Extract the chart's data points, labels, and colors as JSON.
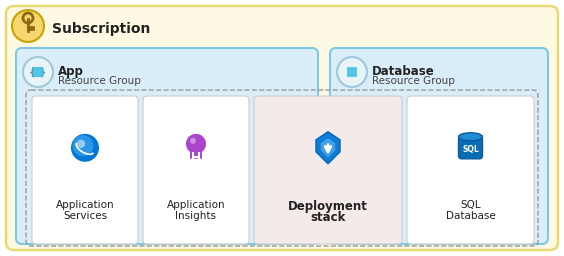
{
  "subscription_label": "Subscription",
  "app_label1": "App",
  "app_label2": "Resource Group",
  "db_label1": "Database",
  "db_label2": "Resource Group",
  "items": [
    {
      "label1": "Application",
      "label2": "Services",
      "icon": "app_services",
      "bold": false
    },
    {
      "label1": "Application",
      "label2": "Insights",
      "icon": "app_insights",
      "bold": false
    },
    {
      "label1": "Deployment",
      "label2": "stack",
      "icon": "deployment_stack",
      "bold": true
    },
    {
      "label1": "SQL",
      "label2": "Database",
      "icon": "sql_db",
      "bold": false
    }
  ],
  "bg_subscription": "#fef9e3",
  "bg_subscription_border": "#e8d870",
  "bg_app_rg": "#daeef9",
  "bg_app_rg_border": "#7ec8e3",
  "bg_db_rg": "#daeef9",
  "bg_db_rg_border": "#7ec8e3",
  "bg_deployment": "#f5eaea",
  "bg_white": "#ffffff",
  "dashed_color": "#999999",
  "text_dark": "#222222",
  "text_mid": "#444444",
  "key_circle": "#f5d76e",
  "key_border": "#c8a200",
  "rg_icon_circle": "#e8f4f8",
  "rg_icon_border": "#a0c8d8",
  "blue1": "#0078d4",
  "blue2": "#00b4d8",
  "purple": "#8855cc",
  "sql_red": "#cc3311",
  "sql_blue": "#0a6db4"
}
